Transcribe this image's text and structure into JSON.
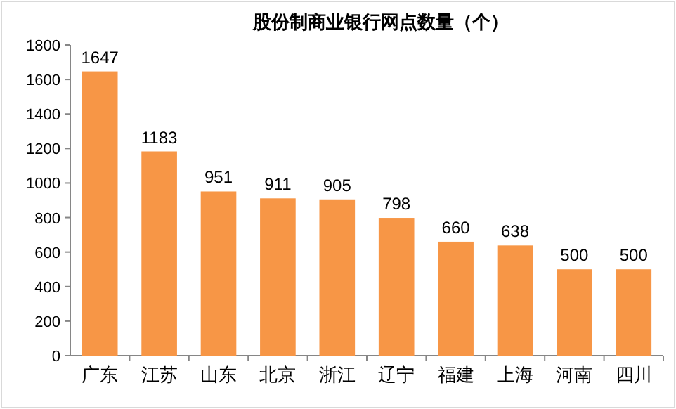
{
  "chart_data": {
    "type": "bar",
    "title": "股份制商业银行网点数量（个）",
    "categories": [
      "广东",
      "江苏",
      "山东",
      "北京",
      "浙江",
      "辽宁",
      "福建",
      "上海",
      "河南",
      "四川"
    ],
    "values": [
      1647,
      1183,
      951,
      911,
      905,
      798,
      660,
      638,
      500,
      500
    ],
    "color": "#f79646",
    "ylim": [
      0,
      1800
    ],
    "yticks": [
      0,
      200,
      400,
      600,
      800,
      1000,
      1200,
      1400,
      1600,
      1800
    ],
    "grid": false,
    "data_labels": true
  }
}
